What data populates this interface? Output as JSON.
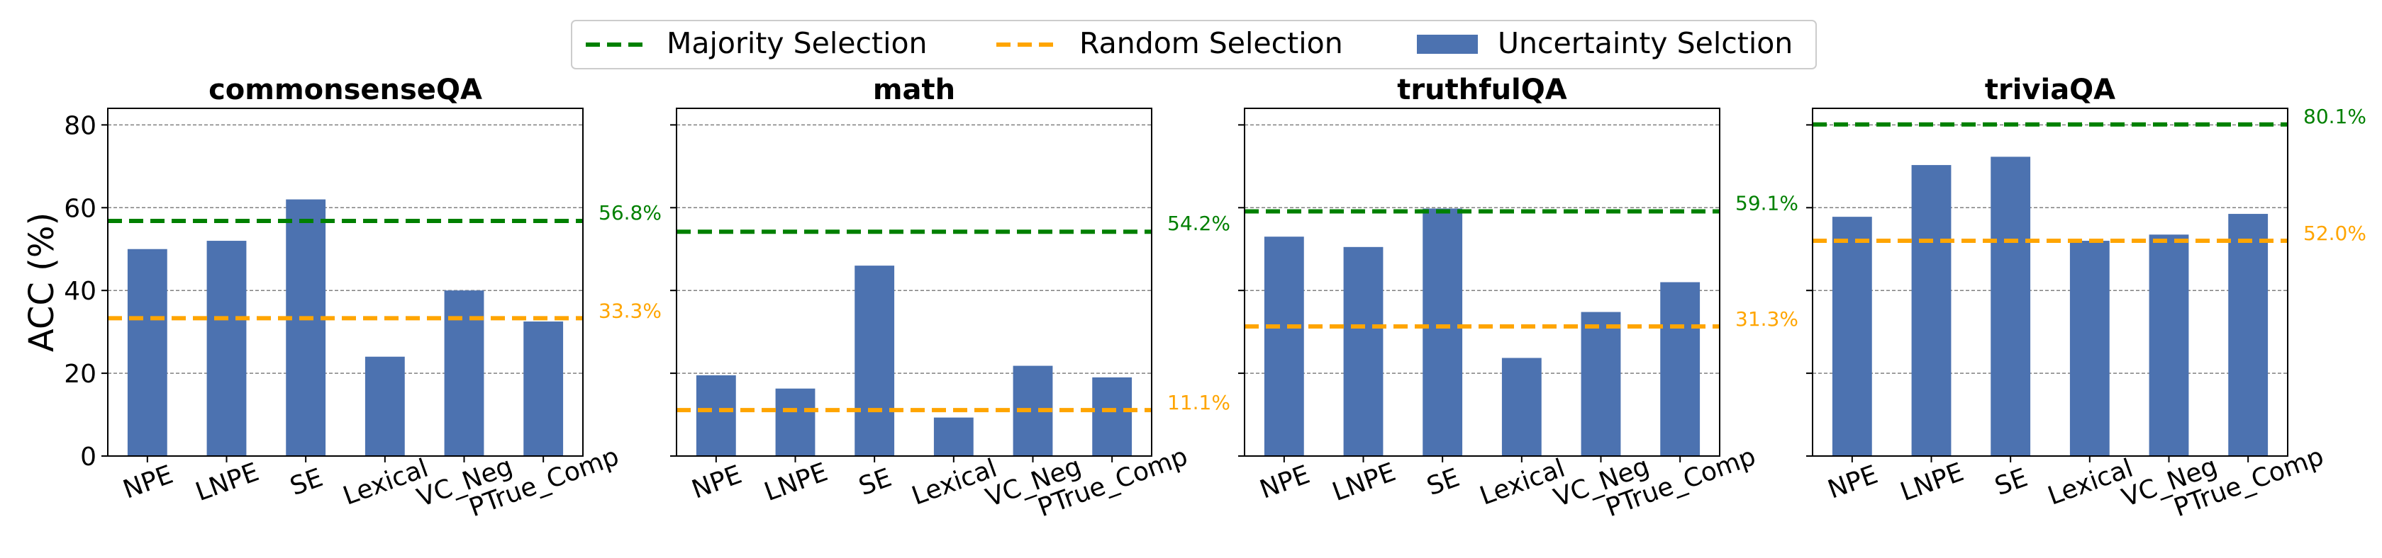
{
  "legend": {
    "items": [
      {
        "label": "Majority Selection",
        "style": "dashed-line",
        "color": "#008000"
      },
      {
        "label": "Random Selection",
        "style": "dashed-line",
        "color": "#FFA500"
      },
      {
        "label": "Uncertainty Selction",
        "style": "bar",
        "color": "#4C72B0"
      }
    ]
  },
  "colors": {
    "bar": "#4C72B0",
    "majority": "#008000",
    "random": "#FFA500",
    "grid": "#808080"
  },
  "chart_data": [
    {
      "type": "bar",
      "title": "commonsenseQA",
      "ylabel": "ACC (%)",
      "xlabel": "",
      "ylim": [
        0,
        84
      ],
      "yticks": [
        0,
        20,
        40,
        60,
        80
      ],
      "show_ytick_labels": true,
      "grid": true,
      "categories": [
        "NPE",
        "LNPE",
        "SE",
        "Lexical",
        "VC_Neg",
        "PTrue_Comp"
      ],
      "values": [
        50,
        52,
        62,
        24,
        40,
        32.5
      ],
      "majority": {
        "value": 56.8,
        "label": "56.8%"
      },
      "random": {
        "value": 33.3,
        "label": "33.3%"
      }
    },
    {
      "type": "bar",
      "title": "math",
      "ylabel": "",
      "xlabel": "",
      "ylim": [
        0,
        84
      ],
      "yticks": [
        0,
        20,
        40,
        60,
        80
      ],
      "show_ytick_labels": false,
      "grid": true,
      "categories": [
        "NPE",
        "LNPE",
        "SE",
        "Lexical",
        "VC_Neg",
        "PTrue_Comp"
      ],
      "values": [
        19.5,
        16.3,
        46,
        9.3,
        21.8,
        19
      ],
      "majority": {
        "value": 54.2,
        "label": "54.2%"
      },
      "random": {
        "value": 11.1,
        "label": "11.1%"
      }
    },
    {
      "type": "bar",
      "title": "truthfulQA",
      "ylabel": "",
      "xlabel": "",
      "ylim": [
        0,
        84
      ],
      "yticks": [
        0,
        20,
        40,
        60,
        80
      ],
      "show_ytick_labels": false,
      "grid": true,
      "categories": [
        "NPE",
        "LNPE",
        "SE",
        "Lexical",
        "VC_Neg",
        "PTrue_Comp"
      ],
      "values": [
        53,
        50.5,
        59.8,
        23.7,
        34.8,
        42
      ],
      "majority": {
        "value": 59.1,
        "label": "59.1%"
      },
      "random": {
        "value": 31.3,
        "label": "31.3%"
      }
    },
    {
      "type": "bar",
      "title": "triviaQA",
      "ylabel": "",
      "xlabel": "",
      "ylim": [
        0,
        84
      ],
      "yticks": [
        0,
        20,
        40,
        60,
        80
      ],
      "show_ytick_labels": false,
      "grid": true,
      "categories": [
        "NPE",
        "LNPE",
        "SE",
        "Lexical",
        "VC_Neg",
        "PTrue_Comp"
      ],
      "values": [
        57.8,
        70.3,
        72.3,
        52,
        53.5,
        58.5
      ],
      "majority": {
        "value": 80.1,
        "label": "80.1%"
      },
      "random": {
        "value": 52.0,
        "label": "52.0%"
      }
    }
  ]
}
